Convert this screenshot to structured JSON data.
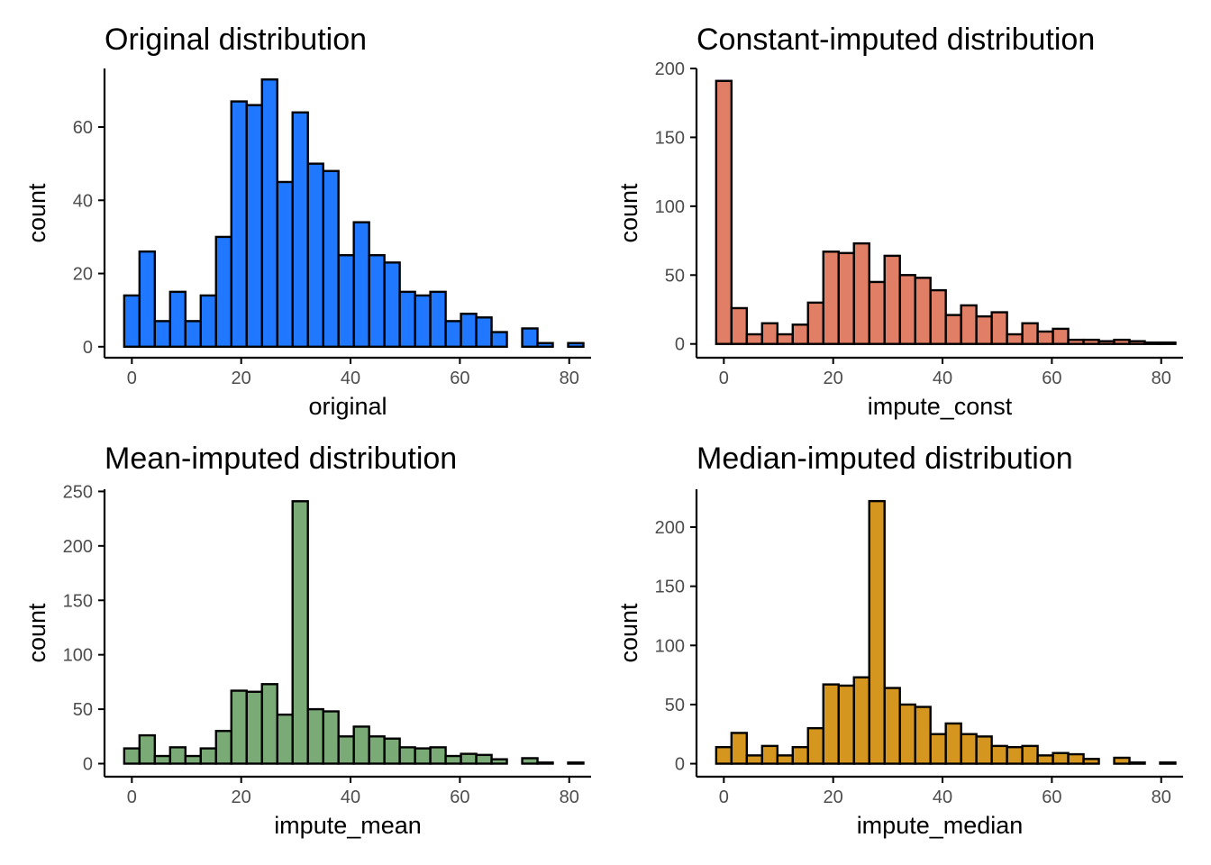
{
  "chart_data": [
    {
      "type": "bar",
      "title": "Original distribution",
      "xlabel": "original",
      "ylabel": "count",
      "color": "#1f78ff",
      "xlim": [
        -5,
        84
      ],
      "ylim": [
        -3,
        76
      ],
      "xticks": [
        0,
        20,
        40,
        60,
        80
      ],
      "yticks": [
        0,
        20,
        40,
        60
      ],
      "bin_start": -1.4,
      "bin_width": 2.8,
      "values": [
        14,
        26,
        7,
        15,
        7,
        14,
        30,
        67,
        66,
        73,
        45,
        64,
        50,
        48,
        25,
        34,
        25,
        23,
        15,
        14,
        15,
        7,
        9,
        8,
        4,
        0,
        5,
        1,
        0,
        1
      ],
      "grid": false
    },
    {
      "type": "bar",
      "title": "Constant-imputed distribution",
      "xlabel": "impute_const",
      "ylabel": "count",
      "color": "#e07e66",
      "xlim": [
        -5,
        84
      ],
      "ylim": [
        -10,
        200
      ],
      "xticks": [
        0,
        20,
        40,
        60,
        80
      ],
      "yticks": [
        0,
        50,
        100,
        150,
        200
      ],
      "bin_start": -1.4,
      "bin_width": 2.8,
      "values": [
        191,
        26,
        7,
        15,
        7,
        14,
        30,
        67,
        66,
        73,
        45,
        64,
        50,
        48,
        39,
        21,
        28,
        20,
        23,
        7,
        15,
        9,
        11,
        3,
        3,
        2,
        3,
        2,
        1,
        1
      ],
      "grid": false
    },
    {
      "type": "bar",
      "title": "Mean-imputed distribution",
      "xlabel": "impute_mean",
      "ylabel": "count",
      "color": "#7aab77",
      "xlim": [
        -5,
        84
      ],
      "ylim": [
        -12,
        252
      ],
      "xticks": [
        0,
        20,
        40,
        60,
        80
      ],
      "yticks": [
        0,
        50,
        100,
        150,
        200,
        250
      ],
      "bin_start": -1.4,
      "bin_width": 2.8,
      "values": [
        14,
        26,
        7,
        15,
        7,
        14,
        30,
        67,
        66,
        73,
        45,
        241,
        50,
        48,
        25,
        34,
        25,
        23,
        15,
        14,
        15,
        7,
        9,
        8,
        4,
        0,
        5,
        1,
        0,
        1
      ],
      "grid": false
    },
    {
      "type": "bar",
      "title": "Median-imputed distribution",
      "xlabel": "impute_median",
      "ylabel": "count",
      "color": "#d4961e",
      "xlim": [
        -5,
        84
      ],
      "ylim": [
        -11,
        232
      ],
      "xticks": [
        0,
        20,
        40,
        60,
        80
      ],
      "yticks": [
        0,
        50,
        100,
        150,
        200
      ],
      "bin_start": -1.4,
      "bin_width": 2.8,
      "values": [
        14,
        26,
        7,
        15,
        7,
        14,
        30,
        67,
        66,
        73,
        222,
        64,
        50,
        48,
        25,
        34,
        25,
        23,
        15,
        14,
        15,
        7,
        9,
        8,
        4,
        0,
        5,
        1,
        0,
        1
      ],
      "grid": false
    }
  ]
}
